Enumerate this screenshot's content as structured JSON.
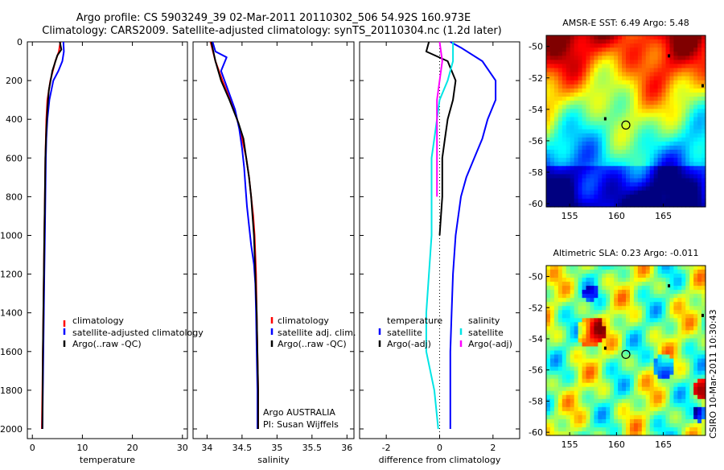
{
  "header": {
    "line1": "Argo profile: CS 5903249_39 02-Mar-2011 20110302_506 54.92S 160.973E",
    "line2": "Climatology: CARS2009. Satellite-adjusted climatology: synTS_20110304.nc (1.2d later)"
  },
  "colors": {
    "climatology": "#ff0000",
    "satellite": "#0000ff",
    "argo": "#000000",
    "sat_salinity_diff": "#00e5e5",
    "argo_salinity_diff": "#ff00ff"
  },
  "chart_data": [
    {
      "type": "line",
      "name": "temperature-profile",
      "xlabel": "temperature",
      "ylabel": "",
      "xlim": [
        -1,
        31
      ],
      "ylim": [
        2050,
        0
      ],
      "xticks": [
        0,
        10,
        20,
        30
      ],
      "yticks": [
        0,
        200,
        400,
        600,
        800,
        1000,
        1200,
        1400,
        1600,
        1800,
        2000
      ],
      "legend": [
        "climatology",
        "satellite-adjusted climatology",
        "Argo(..raw -QC)"
      ],
      "series": [
        {
          "name": "climatology",
          "color": "#ff0000",
          "points": [
            [
              5.6,
              0
            ],
            [
              5.3,
              50
            ],
            [
              4.6,
              100
            ],
            [
              3.6,
              200
            ],
            [
              3.0,
              300
            ],
            [
              2.8,
              400
            ],
            [
              2.7,
              500
            ],
            [
              2.6,
              600
            ],
            [
              2.5,
              800
            ],
            [
              2.4,
              1000
            ],
            [
              2.3,
              1200
            ],
            [
              2.2,
              1400
            ],
            [
              2.1,
              1600
            ],
            [
              2.0,
              1800
            ],
            [
              1.9,
              2000
            ]
          ]
        },
        {
          "name": "satellite-adjusted climatology",
          "color": "#0000ff",
          "points": [
            [
              6.2,
              0
            ],
            [
              6.3,
              50
            ],
            [
              6.0,
              100
            ],
            [
              5.2,
              150
            ],
            [
              4.2,
              200
            ],
            [
              3.4,
              300
            ],
            [
              3.0,
              400
            ],
            [
              2.8,
              500
            ],
            [
              2.7,
              600
            ],
            [
              2.6,
              800
            ],
            [
              2.5,
              1000
            ],
            [
              2.4,
              1200
            ],
            [
              2.3,
              1400
            ],
            [
              2.2,
              1600
            ],
            [
              2.1,
              1800
            ],
            [
              2.0,
              2000
            ]
          ]
        },
        {
          "name": "Argo(..raw -QC)",
          "color": "#000000",
          "points": [
            [
              5.5,
              0
            ],
            [
              5.8,
              40
            ],
            [
              5.0,
              70
            ],
            [
              4.0,
              150
            ],
            [
              3.3,
              250
            ],
            [
              3.0,
              350
            ],
            [
              2.8,
              450
            ],
            [
              2.6,
              600
            ],
            [
              2.5,
              800
            ],
            [
              2.4,
              1000
            ],
            [
              2.3,
              1200
            ],
            [
              2.2,
              1400
            ],
            [
              2.1,
              1600
            ],
            [
              2.05,
              1800
            ],
            [
              2.0,
              2000
            ]
          ]
        }
      ]
    },
    {
      "type": "line",
      "name": "salinity-profile",
      "xlabel": "salinity",
      "ylabel": "",
      "xlim": [
        33.8,
        36.1
      ],
      "ylim": [
        2050,
        0
      ],
      "xticks": [
        34,
        34.5,
        35,
        35.5,
        36
      ],
      "yticks": [
        0,
        200,
        400,
        600,
        800,
        1000,
        1200,
        1400,
        1600,
        1800,
        2000
      ],
      "legend": [
        "climatology",
        "satellite adj. clim.",
        "Argo(..raw -QC)"
      ],
      "annotation": [
        "Argo AUSTRALIA",
        "PI: Susan Wijffels"
      ],
      "series": [
        {
          "name": "climatology",
          "color": "#ff0000",
          "points": [
            [
              34.05,
              0
            ],
            [
              34.12,
              100
            ],
            [
              34.22,
              200
            ],
            [
              34.33,
              300
            ],
            [
              34.43,
              400
            ],
            [
              34.5,
              500
            ],
            [
              34.56,
              600
            ],
            [
              34.6,
              700
            ],
            [
              34.63,
              800
            ],
            [
              34.66,
              900
            ],
            [
              34.68,
              1000
            ],
            [
              34.7,
              1200
            ],
            [
              34.71,
              1400
            ],
            [
              34.72,
              1600
            ],
            [
              34.73,
              1800
            ],
            [
              34.73,
              2000
            ]
          ]
        },
        {
          "name": "satellite adj. clim.",
          "color": "#0000ff",
          "points": [
            [
              34.08,
              0
            ],
            [
              34.12,
              50
            ],
            [
              34.28,
              80
            ],
            [
              34.2,
              150
            ],
            [
              34.3,
              250
            ],
            [
              34.4,
              350
            ],
            [
              34.46,
              450
            ],
            [
              34.5,
              550
            ],
            [
              34.53,
              650
            ],
            [
              34.55,
              750
            ],
            [
              34.57,
              850
            ],
            [
              34.6,
              950
            ],
            [
              34.63,
              1050
            ],
            [
              34.67,
              1150
            ],
            [
              34.69,
              1250
            ],
            [
              34.7,
              1400
            ],
            [
              34.71,
              1600
            ],
            [
              34.72,
              1800
            ],
            [
              34.72,
              2000
            ]
          ]
        },
        {
          "name": "Argo(..raw -QC)",
          "color": "#000000",
          "points": [
            [
              34.06,
              0
            ],
            [
              34.12,
              100
            ],
            [
              34.2,
              200
            ],
            [
              34.32,
              300
            ],
            [
              34.45,
              420
            ],
            [
              34.52,
              500
            ],
            [
              34.56,
              600
            ],
            [
              34.6,
              700
            ],
            [
              34.63,
              800
            ],
            [
              34.65,
              900
            ],
            [
              34.67,
              1000
            ],
            [
              34.69,
              1200
            ],
            [
              34.71,
              1400
            ],
            [
              34.72,
              1600
            ],
            [
              34.73,
              1800
            ],
            [
              34.73,
              2000
            ]
          ]
        }
      ]
    },
    {
      "type": "line",
      "name": "difference-profile",
      "xlabel": "difference from climatology",
      "ylabel": "",
      "xlim": [
        -3,
        3
      ],
      "ylim": [
        2050,
        0
      ],
      "xticks": [
        -2,
        0,
        2
      ],
      "yticks": [
        0,
        200,
        400,
        600,
        800,
        1000,
        1200,
        1400,
        1600,
        1800,
        2000
      ],
      "legend_left_title": "temperature",
      "legend_left": [
        "satellite",
        "Argo(-adj)"
      ],
      "legend_right_title": "salinity",
      "legend_right": [
        "satellite",
        "Argo(-adj)"
      ],
      "series": [
        {
          "name": "temperature satellite",
          "color": "#0000ff",
          "points": [
            [
              0.4,
              0
            ],
            [
              0.8,
              30
            ],
            [
              1.6,
              100
            ],
            [
              2.1,
              200
            ],
            [
              2.1,
              300
            ],
            [
              1.8,
              400
            ],
            [
              1.6,
              500
            ],
            [
              1.3,
              600
            ],
            [
              1.0,
              700
            ],
            [
              0.8,
              800
            ],
            [
              0.6,
              1000
            ],
            [
              0.5,
              1200
            ],
            [
              0.45,
              1400
            ],
            [
              0.4,
              1600
            ],
            [
              0.4,
              1800
            ],
            [
              0.4,
              2000
            ]
          ]
        },
        {
          "name": "temperature Argo(-adj)",
          "color": "#000000",
          "points": [
            [
              -0.4,
              0
            ],
            [
              -0.5,
              50
            ],
            [
              0.3,
              100
            ],
            [
              0.6,
              200
            ],
            [
              0.5,
              300
            ],
            [
              0.3,
              400
            ],
            [
              0.2,
              500
            ],
            [
              0.1,
              600
            ],
            [
              0.1,
              800
            ],
            [
              0.0,
              1000
            ]
          ]
        },
        {
          "name": "salinity satellite",
          "color": "#00e5e5",
          "points": [
            [
              0.5,
              0
            ],
            [
              0.5,
              100
            ],
            [
              0.3,
              200
            ],
            [
              0.0,
              300
            ],
            [
              -0.1,
              400
            ],
            [
              -0.2,
              500
            ],
            [
              -0.3,
              600
            ],
            [
              -0.3,
              700
            ],
            [
              -0.3,
              800
            ],
            [
              -0.3,
              1000
            ],
            [
              -0.4,
              1200
            ],
            [
              -0.5,
              1400
            ],
            [
              -0.5,
              1600
            ],
            [
              -0.2,
              1800
            ],
            [
              -0.05,
              2000
            ]
          ]
        },
        {
          "name": "salinity Argo(-adj)",
          "color": "#ff00ff",
          "points": [
            [
              0.0,
              0
            ],
            [
              0.1,
              100
            ],
            [
              0.0,
              200
            ],
            [
              -0.1,
              300
            ],
            [
              -0.1,
              400
            ],
            [
              -0.1,
              500
            ],
            [
              -0.1,
              600
            ],
            [
              -0.1,
              700
            ],
            [
              -0.1,
              800
            ]
          ]
        }
      ]
    },
    {
      "type": "heatmap",
      "name": "sst-map",
      "title": "AMSR-E SST: 6.49 Argo: 5.48",
      "xlim": [
        152.5,
        169.5
      ],
      "ylim": [
        -60.2,
        -49.3
      ],
      "xticks": [
        155,
        160,
        165
      ],
      "yticks": [
        -50,
        -52,
        -54,
        -56,
        -58,
        -60
      ],
      "marker": {
        "lon": 161,
        "lat": -55
      }
    },
    {
      "type": "heatmap",
      "name": "sla-map",
      "title": "Altimetric SLA: 0.23 Argo: -0.011",
      "xlim": [
        152.5,
        169.5
      ],
      "ylim": [
        -60.2,
        -49.3
      ],
      "xticks": [
        155,
        160,
        165
      ],
      "yticks": [
        -50,
        -52,
        -54,
        -56,
        -58,
        -60
      ],
      "marker": {
        "lon": 161,
        "lat": -55
      }
    }
  ],
  "credit": "CSIRO 10-Mar-2011 10:30:43"
}
